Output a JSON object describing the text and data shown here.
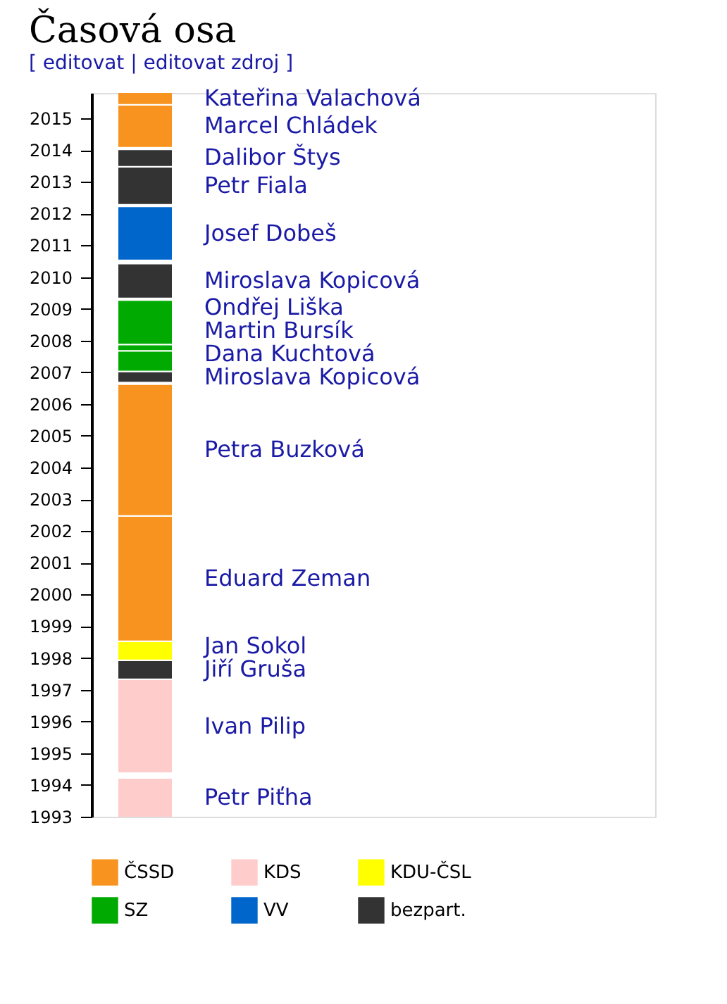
{
  "chart_data": {
    "type": "bar",
    "title": "Časová osa",
    "subtitle": "[ editovat | editovat zdroj ]",
    "categories": [
      null
    ],
    "ylim": [
      1993,
      2015.8
    ],
    "yticks": [
      1993,
      1994,
      1995,
      1996,
      1997,
      1998,
      1999,
      2000,
      2001,
      2002,
      2003,
      2004,
      2005,
      2006,
      2007,
      2008,
      2009,
      2010,
      2011,
      2012,
      2013,
      2014,
      2015
    ],
    "tick_labels": "y",
    "grid": false,
    "legend": "bottom",
    "series": [
      {
        "name": "Petr Piťha",
        "color": "#ffcccc",
        "base": [
          1993.0
        ],
        "values": [
          1.2
        ]
      },
      {
        "name": "Ivan Pilip",
        "color": "#ffcccc",
        "base": [
          1994.4
        ],
        "values": [
          2.9
        ]
      },
      {
        "name": "Jiří Gruša",
        "color": "#333333",
        "base": [
          1997.35
        ],
        "values": [
          0.55
        ]
      },
      {
        "name": "Jan Sokol",
        "color": "#ffff00",
        "base": [
          1997.95
        ],
        "values": [
          0.55
        ]
      },
      {
        "name": "Eduard Zeman",
        "color": "#f7931e",
        "base": [
          1998.55
        ],
        "values": [
          3.9
        ]
      },
      {
        "name": "Petra Buzková",
        "color": "#f7931e",
        "base": [
          2002.5
        ],
        "values": [
          4.1
        ]
      },
      {
        "name": "Miroslava Kopicová",
        "color": "#333333",
        "base": [
          2006.7
        ],
        "values": [
          0.3
        ]
      },
      {
        "name": "Dana Kuchtová",
        "color": "#00aa00",
        "base": [
          2007.05
        ],
        "values": [
          0.6
        ]
      },
      {
        "name": "Martin Bursík",
        "color": "#00aa00",
        "base": [
          2007.7
        ],
        "values": [
          0.15
        ]
      },
      {
        "name": "Ondřej Liška",
        "color": "#00aa00",
        "base": [
          2007.9
        ],
        "values": [
          1.35
        ]
      },
      {
        "name": "Miroslava Kopicová",
        "color": "#333333",
        "base": [
          2009.35
        ],
        "values": [
          1.05
        ]
      },
      {
        "name": "Josef Dobeš",
        "color": "#0066cc",
        "base": [
          2010.55
        ],
        "values": [
          1.65
        ]
      },
      {
        "name": "Petr Fiala",
        "color": "#333333",
        "base": [
          2012.3
        ],
        "values": [
          1.15
        ]
      },
      {
        "name": "Dalibor Štys",
        "color": "#333333",
        "base": [
          2013.5
        ],
        "values": [
          0.5
        ]
      },
      {
        "name": "Marcel Chládek",
        "color": "#f7931e",
        "base": [
          2014.1
        ],
        "values": [
          1.3
        ]
      },
      {
        "name": "Kateřina Valachová",
        "color": "#f7931e",
        "base": [
          2015.45
        ],
        "values": [
          0.35
        ]
      },
      {
        "name": "ČSSD",
        "color": "#f7931e",
        "values": [
          null
        ]
      },
      {
        "name": "KDS",
        "color": "#ffcccc",
        "values": [
          null
        ]
      },
      {
        "name": "KDU-ČSL",
        "color": "#ffff00",
        "values": [
          null
        ]
      },
      {
        "name": "SZ",
        "color": "#00aa00",
        "values": [
          null
        ]
      },
      {
        "name": "VV",
        "color": "#0066cc",
        "values": [
          null
        ]
      },
      {
        "name": "bezpart.",
        "color": "#333333",
        "values": [
          null
        ]
      }
    ]
  }
}
